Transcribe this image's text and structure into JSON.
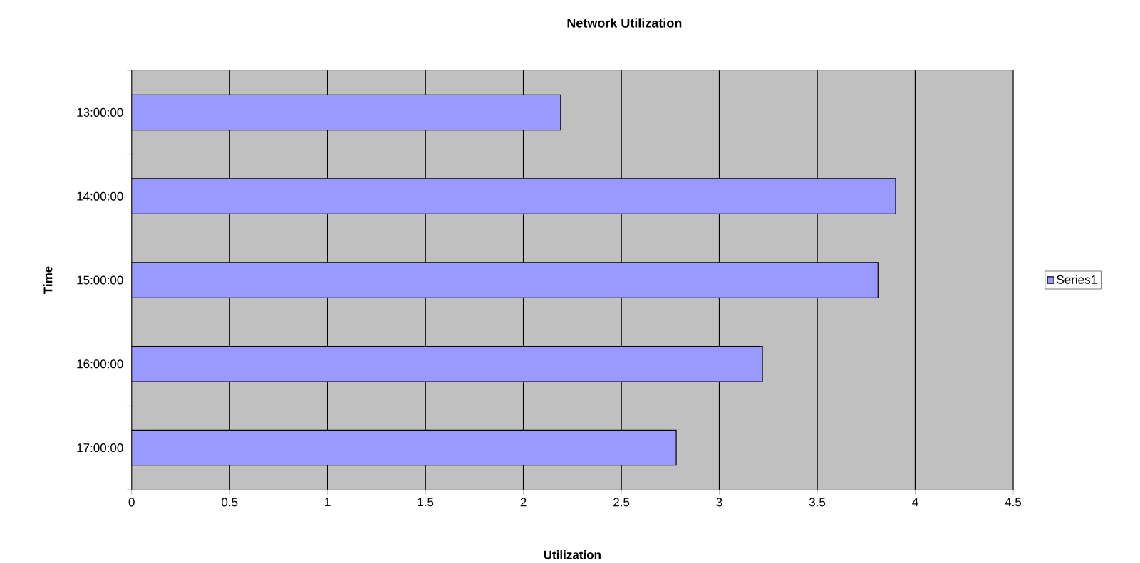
{
  "chart_data": {
    "type": "bar",
    "orientation": "horizontal",
    "title": "Network Utilization",
    "xlabel": "Utilization",
    "ylabel": "Time",
    "categories": [
      "13:00:00",
      "14:00:00",
      "15:00:00",
      "16:00:00",
      "17:00:00"
    ],
    "series": [
      {
        "name": "Series1",
        "color": "#9999ff",
        "values": [
          2.19,
          3.9,
          3.81,
          3.22,
          2.78
        ]
      }
    ],
    "xlim": [
      0,
      4.5
    ],
    "xticks": [
      0,
      0.5,
      1,
      1.5,
      2,
      2.5,
      3,
      3.5,
      4,
      4.5
    ],
    "grid": "x",
    "legend": "right"
  }
}
